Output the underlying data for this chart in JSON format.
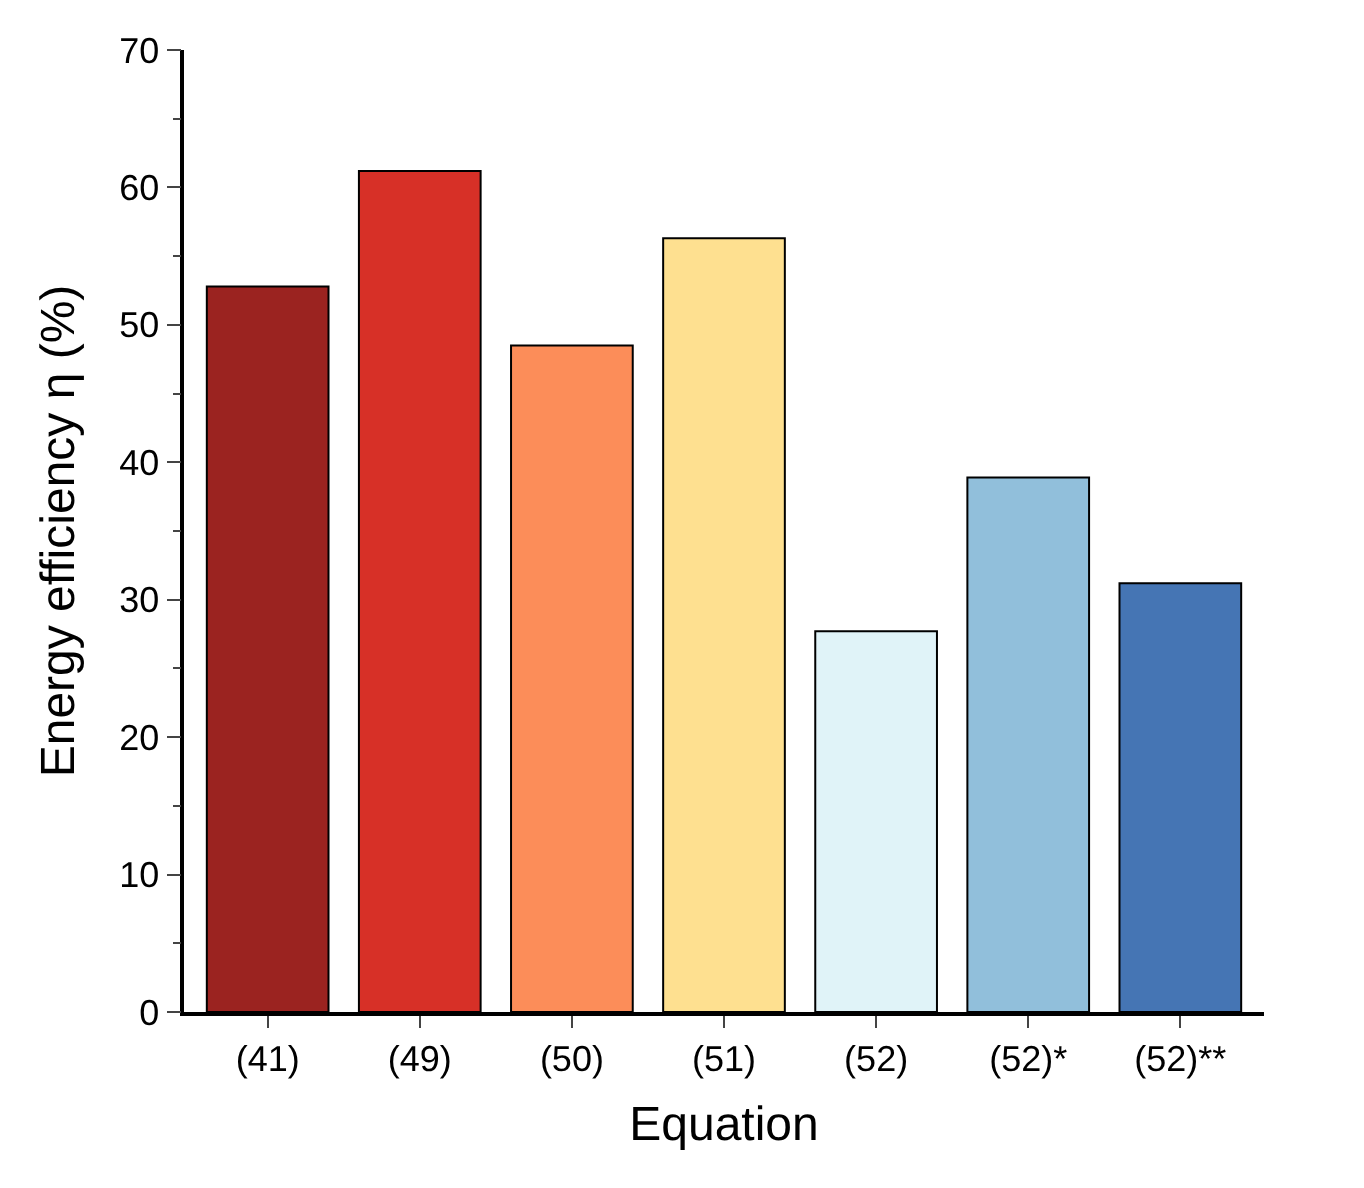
{
  "chart_data": {
    "type": "bar",
    "xlabel": "Equation",
    "ylabel": "Energy efficiency η (%)",
    "categories": [
      "(41)",
      "(49)",
      "(50)",
      "(51)",
      "(52)",
      "(52)*",
      "(52)**"
    ],
    "values": [
      52.8,
      61.2,
      48.5,
      56.3,
      27.7,
      38.9,
      31.2
    ],
    "colors": [
      "#9b2320",
      "#d73027",
      "#fc8d59",
      "#fee090",
      "#e0f3f8",
      "#91bfdb",
      "#4575b4"
    ],
    "ylim": [
      0,
      70
    ],
    "yticks": [
      0,
      10,
      20,
      30,
      40,
      50,
      60,
      70
    ]
  }
}
